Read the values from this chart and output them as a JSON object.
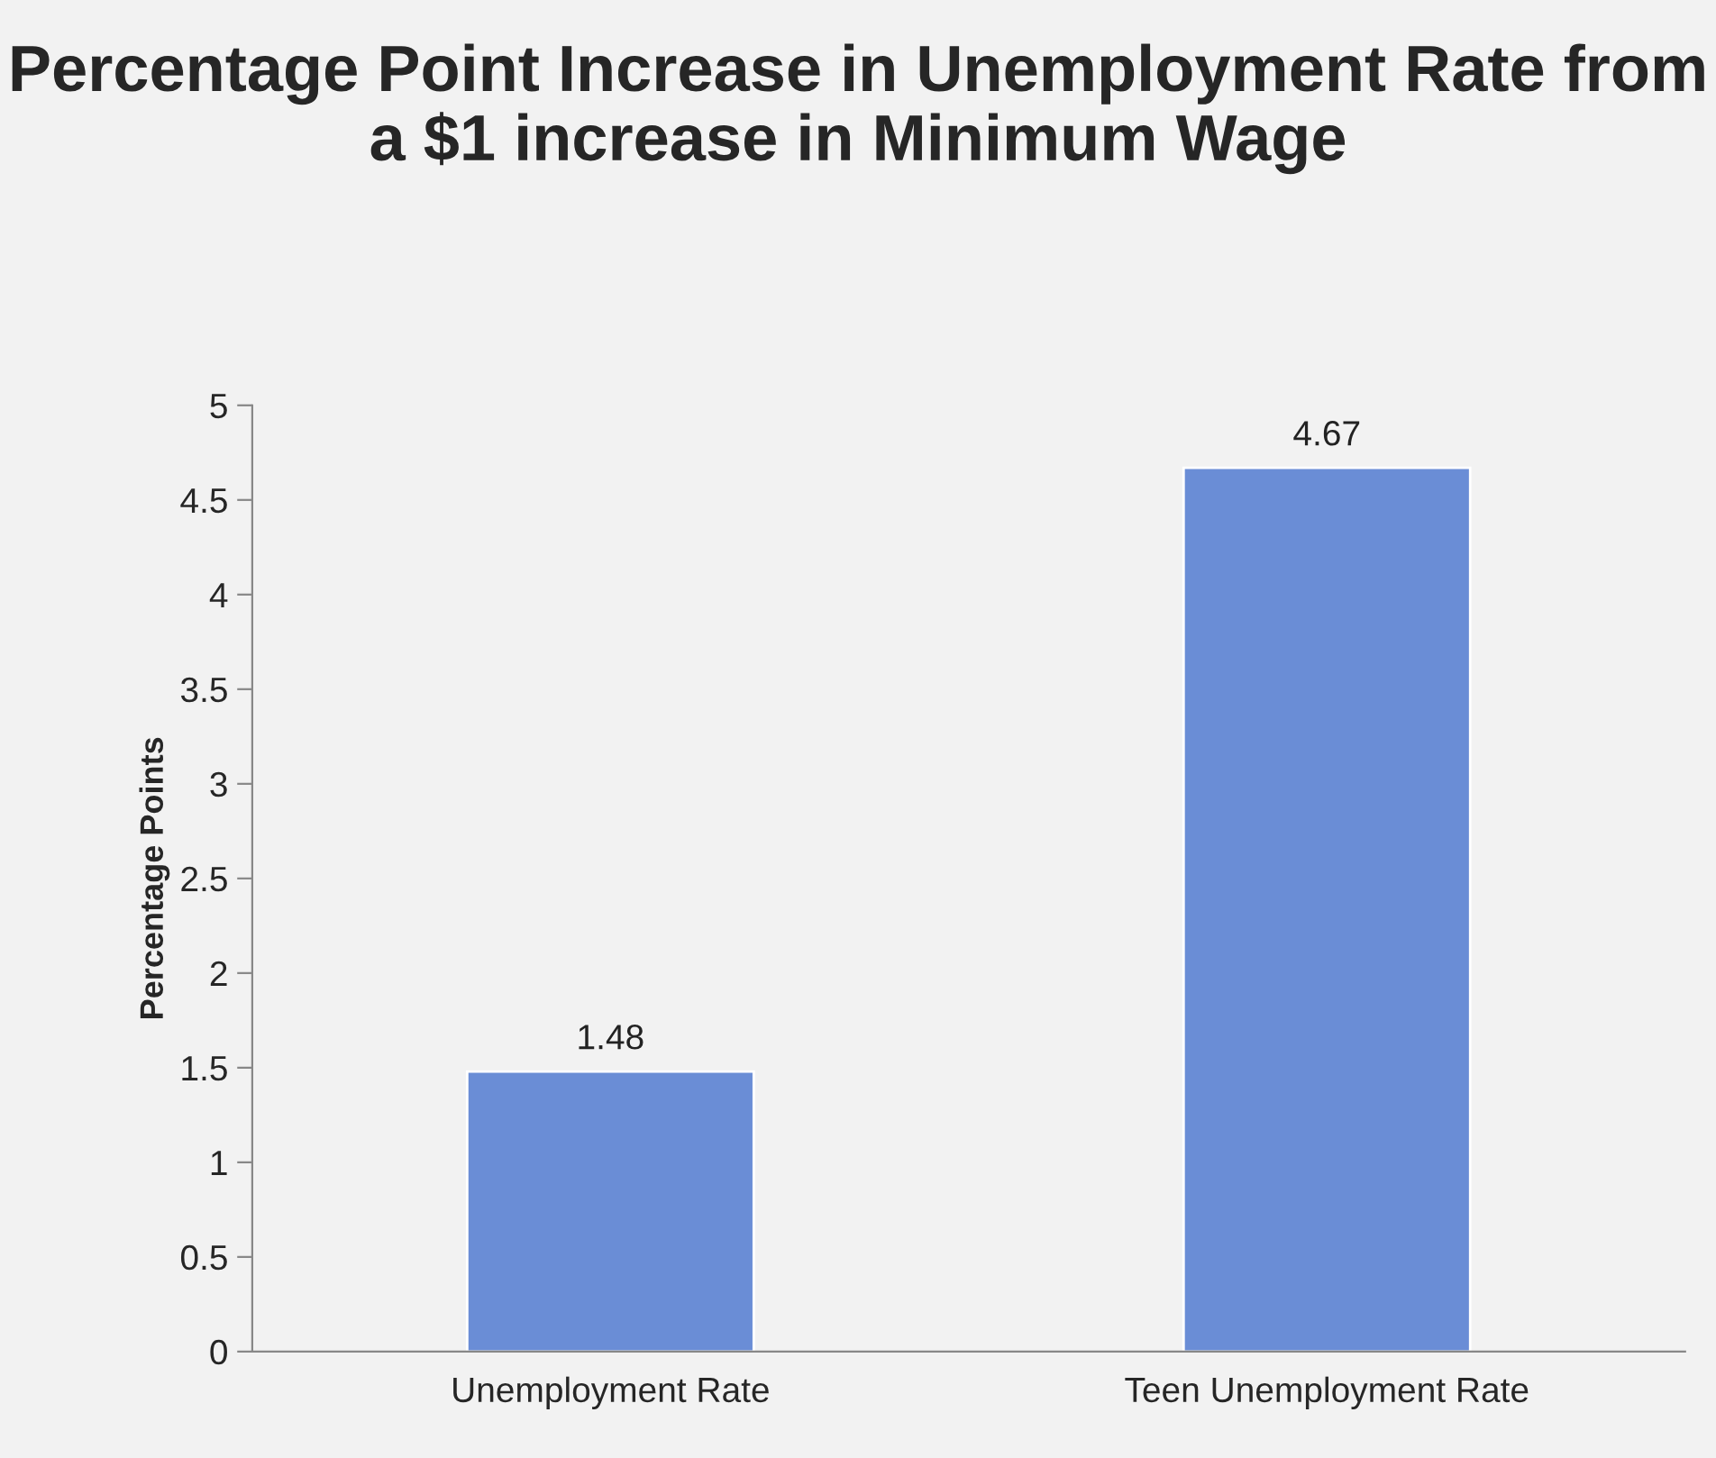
{
  "chart_data": {
    "type": "bar",
    "title": "Percentage Point Increase in Unemployment Rate from a $1 increase in Minimum Wage",
    "ylabel": "Percentage Points",
    "categories": [
      "Unemployment Rate",
      "Teen Unemployment Rate"
    ],
    "values": [
      1.48,
      4.67
    ],
    "color": "#6a8dd6",
    "ylim": [
      0,
      5
    ],
    "yticks": [
      0,
      0.5,
      1,
      1.5,
      2,
      2.5,
      3,
      3.5,
      4,
      4.5,
      5
    ],
    "data_labels": true,
    "grid": false,
    "legend": false
  }
}
